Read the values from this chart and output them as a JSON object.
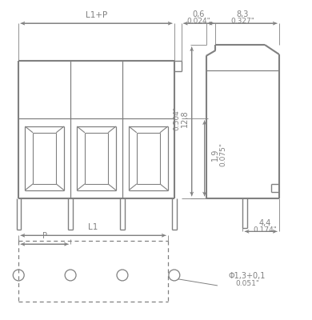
{
  "bg_color": "#ffffff",
  "line_color": "#808080",
  "figsize": [
    3.9,
    4.0
  ],
  "dpi": 100,
  "annotations": {
    "L1_plus_P": "L1+P",
    "dim_06": "0,6",
    "dim_024": "0.024\"",
    "dim_83": "8,3",
    "dim_327": "0.327\"",
    "dim_19": "1,9",
    "dim_075": "0.075\"",
    "dim_128": "12,8",
    "dim_504": "0.504\"",
    "dim_44": "4,4",
    "dim_174": "0.174\"",
    "dim_phi": "Φ1,3+0,1",
    "dim_051": "0.051\"",
    "L1": "L1",
    "P": "P"
  }
}
